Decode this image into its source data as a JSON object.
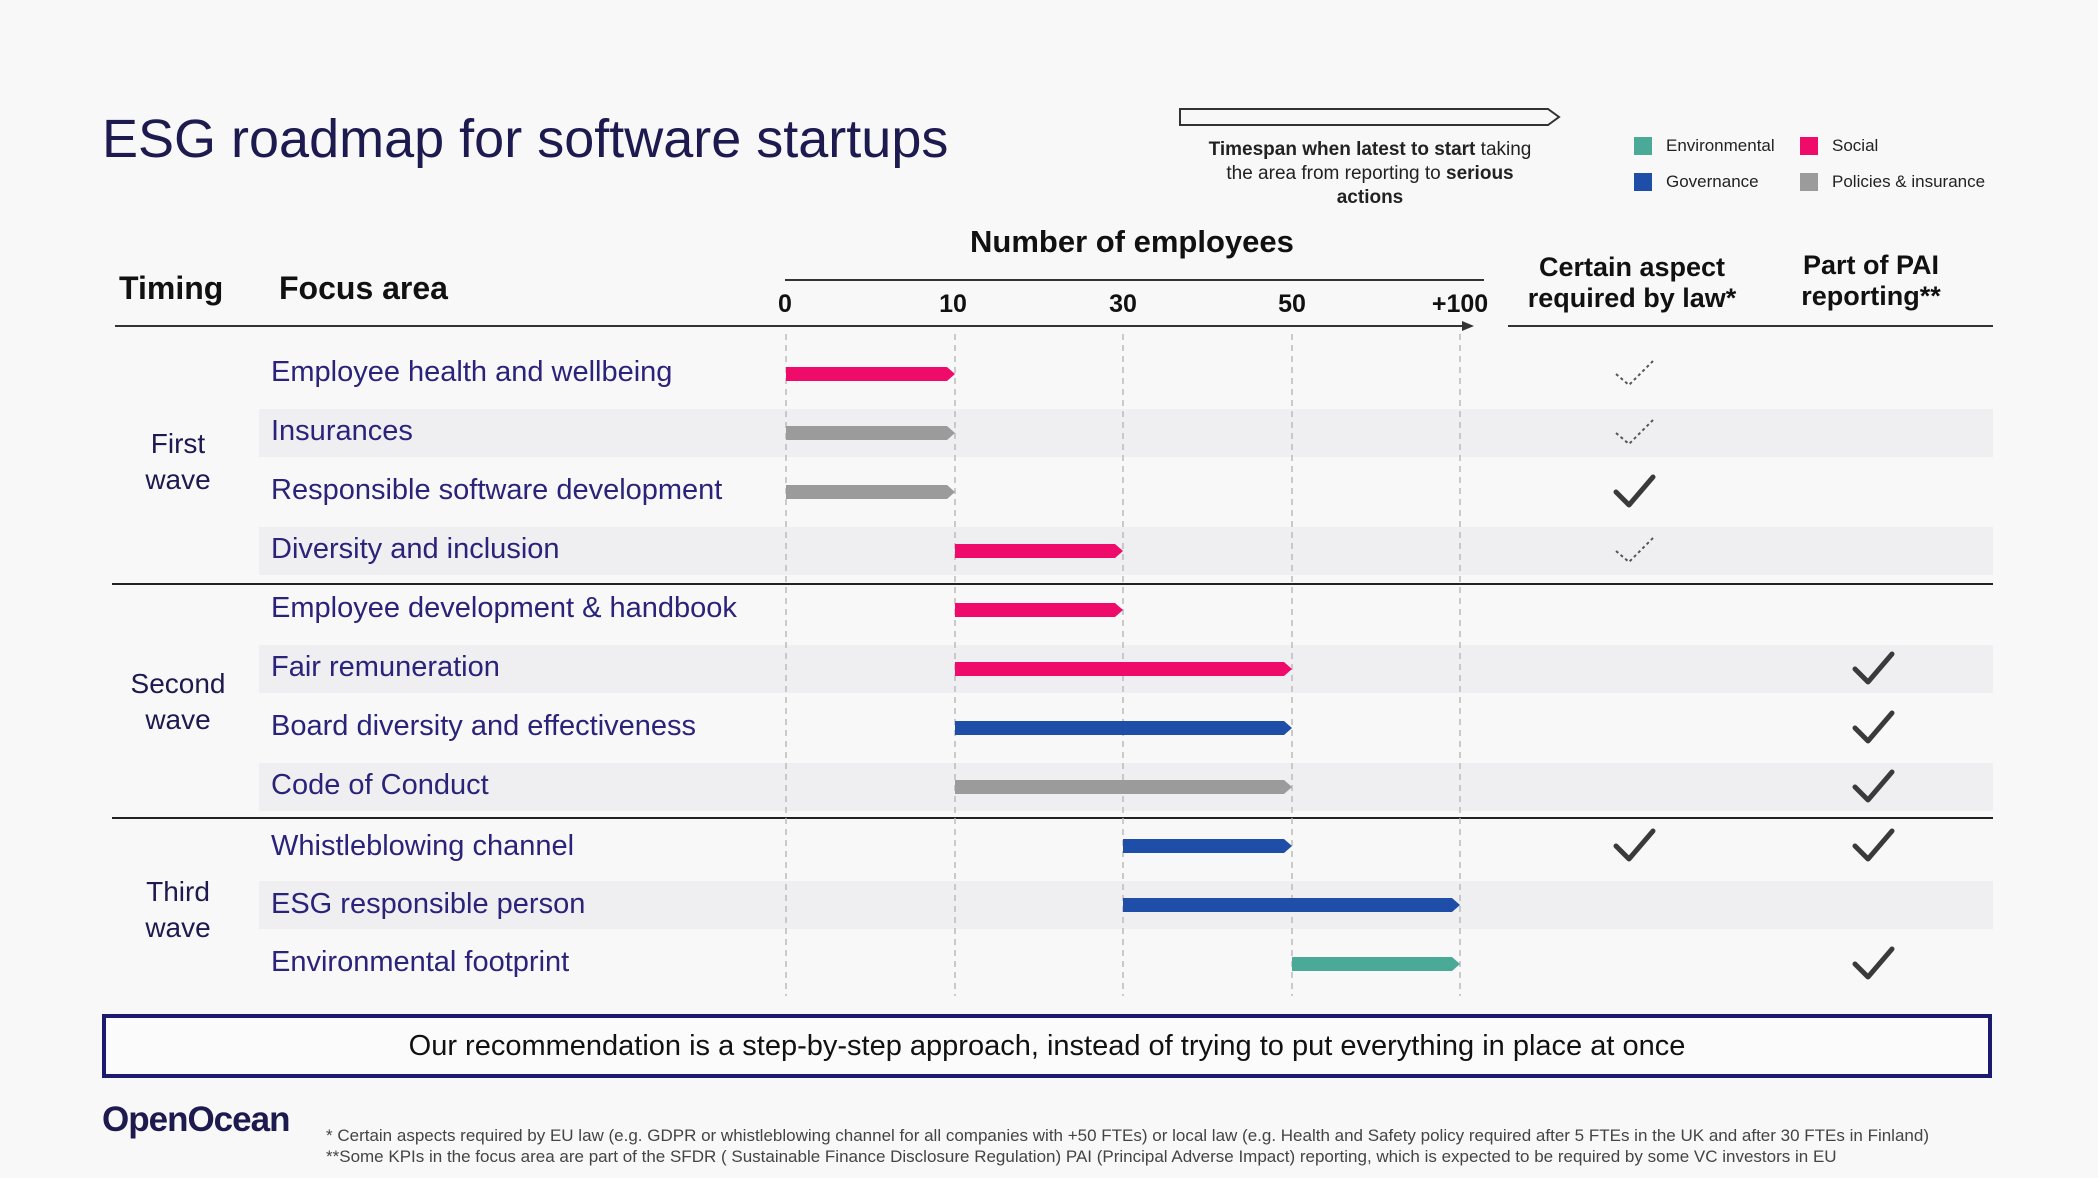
{
  "title": "ESG roadmap for software startups",
  "timespan_note": {
    "line1_bold": "Timespan when latest to start",
    "line1_rest": " taking",
    "line2_plain": "the  area from reporting to ",
    "line2_bold": "serious",
    "line3_bold": "actions"
  },
  "legend": [
    {
      "label": "Environmental",
      "color": "#4aa997"
    },
    {
      "label": "Social",
      "color": "#ee0b6a"
    },
    {
      "label": "Governance",
      "color": "#1f4ea8"
    },
    {
      "label": "Policies & insurance",
      "color": "#9b9b9b"
    }
  ],
  "headers": {
    "timing": "Timing",
    "focus": "Focus area",
    "employees": "Number of employees",
    "law_line1": "Certain aspect",
    "law_line2": "required by law*",
    "pai_line1": "Part of PAI",
    "pai_line2": "reporting**"
  },
  "waves": [
    {
      "line1": "First",
      "line2": "wave"
    },
    {
      "line1": "Second",
      "line2": "wave"
    },
    {
      "line1": "Third",
      "line2": "wave"
    }
  ],
  "chart_data": {
    "type": "bar",
    "title": "Number of employees",
    "xlabel": "Number of employees",
    "ylabel": "Focus area",
    "x_ticks": [
      "0",
      "10",
      "30",
      "50",
      "+100"
    ],
    "series": [
      {
        "name": "Environmental",
        "color": "#4aa997"
      },
      {
        "name": "Social",
        "color": "#ee0b6a"
      },
      {
        "name": "Governance",
        "color": "#1f4ea8"
      },
      {
        "name": "Policies & insurance",
        "color": "#9b9b9b"
      }
    ],
    "rows": [
      {
        "label": "Employee health and wellbeing",
        "wave": "First wave",
        "start": "0",
        "end": "10",
        "category": "Social",
        "law": "partial",
        "pai": "none"
      },
      {
        "label": "Insurances",
        "wave": "First wave",
        "start": "0",
        "end": "10",
        "category": "Policies & insurance",
        "law": "partial",
        "pai": "none"
      },
      {
        "label": "Responsible software development",
        "wave": "First wave",
        "start": "0",
        "end": "10",
        "category": "Policies & insurance",
        "law": "full",
        "pai": "none"
      },
      {
        "label": "Diversity and inclusion",
        "wave": "First wave",
        "start": "10",
        "end": "30",
        "category": "Social",
        "law": "partial",
        "pai": "none"
      },
      {
        "label": "Employee development & handbook",
        "wave": "Second wave",
        "start": "10",
        "end": "30",
        "category": "Social",
        "law": "none",
        "pai": "none"
      },
      {
        "label": "Fair remuneration",
        "wave": "Second wave",
        "start": "10",
        "end": "50",
        "category": "Social",
        "law": "none",
        "pai": "full"
      },
      {
        "label": "Board diversity and effectiveness",
        "wave": "Second wave",
        "start": "10",
        "end": "50",
        "category": "Governance",
        "law": "none",
        "pai": "full"
      },
      {
        "label": "Code of Conduct",
        "wave": "Second wave",
        "start": "10",
        "end": "50",
        "category": "Policies & insurance",
        "law": "none",
        "pai": "full"
      },
      {
        "label": "Whistleblowing channel",
        "wave": "Third wave",
        "start": "30",
        "end": "50",
        "category": "Governance",
        "law": "full",
        "pai": "full"
      },
      {
        "label": "ESG responsible person",
        "wave": "Third wave",
        "start": "30",
        "end": "+100",
        "category": "Governance",
        "law": "none",
        "pai": "none"
      },
      {
        "label": "Environmental footprint",
        "wave": "Third wave",
        "start": "50",
        "end": "+100",
        "category": "Environmental",
        "law": "none",
        "pai": "full"
      }
    ]
  },
  "recommendation": "Our recommendation is a step-by-step approach, instead of trying to put everything in place at once",
  "logo": "OpenOcean",
  "footnotes": [
    "* Certain aspects required by EU law (e.g. GDPR or whistleblowing channel for all companies with +50 FTEs) or local law (e.g. Health and Safety policy required after  5 FTEs in the UK and after 30 FTEs in Finland)",
    "**Some KPIs in the focus area are part of the SFDR ( Sustainable Finance Disclosure Regulation)  PAI (Principal Adverse Impact) reporting, which is expected to be required by some VC investors in EU"
  ]
}
